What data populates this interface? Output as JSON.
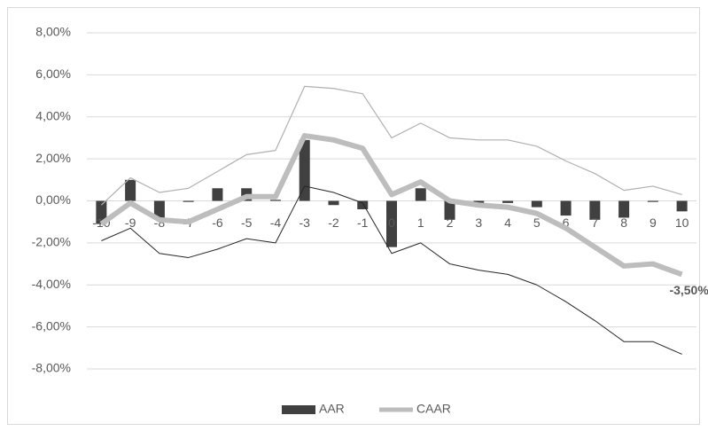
{
  "chart_data": {
    "type": "combo",
    "categories": [
      "-10",
      "-9",
      "-8",
      "-7",
      "-6",
      "-5",
      "-4",
      "-3",
      "-2",
      "-1",
      "0",
      "1",
      "2",
      "3",
      "4",
      "5",
      "6",
      "7",
      "8",
      "9",
      "10"
    ],
    "ylim": [
      -8,
      8
    ],
    "yticks": [
      {
        "value": -8,
        "label": "-8,00%"
      },
      {
        "value": -6,
        "label": "-6,00%"
      },
      {
        "value": -4,
        "label": "-4,00%"
      },
      {
        "value": -2,
        "label": "-2,00%"
      },
      {
        "value": 0,
        "label": "0,00%"
      },
      {
        "value": 2,
        "label": "2,00%"
      },
      {
        "value": 4,
        "label": "4,00%"
      },
      {
        "value": 6,
        "label": "6,00%"
      },
      {
        "value": 8,
        "label": "8,00%"
      }
    ],
    "grid": true,
    "legend": "bottom",
    "series": [
      {
        "name": "AAR",
        "type": "bar",
        "color": "#404040",
        "values": [
          -1.1,
          1.0,
          -0.8,
          -0.05,
          0.6,
          0.6,
          0.05,
          2.9,
          -0.2,
          -0.4,
          -2.2,
          0.6,
          -0.9,
          -0.1,
          -0.1,
          -0.3,
          -0.7,
          -0.9,
          -0.8,
          -0.05,
          -0.5
        ]
      },
      {
        "type": "line",
        "color": "#b0b0b0",
        "width": 1.2,
        "values": [
          -0.2,
          1.1,
          0.4,
          0.6,
          1.4,
          2.2,
          2.4,
          5.45,
          5.35,
          5.1,
          3.0,
          3.7,
          3.0,
          2.9,
          2.9,
          2.6,
          1.9,
          1.3,
          0.5,
          0.7,
          0.3
        ]
      },
      {
        "type": "line",
        "color": "#262626",
        "width": 1,
        "values": [
          -1.9,
          -1.3,
          -2.5,
          -2.7,
          -2.3,
          -1.8,
          -2.0,
          0.7,
          0.4,
          -0.1,
          -2.5,
          -2.0,
          -3.0,
          -3.3,
          -3.5,
          -4.0,
          -4.8,
          -5.7,
          -6.7,
          -6.7,
          -7.3
        ]
      },
      {
        "name": "CAAR",
        "type": "line",
        "color": "#bdbdbd",
        "width": 6,
        "values": [
          -1.1,
          -0.1,
          -0.9,
          -1.0,
          -0.4,
          0.2,
          0.2,
          3.1,
          2.9,
          2.5,
          0.3,
          0.9,
          0.0,
          -0.2,
          -0.3,
          -0.6,
          -1.3,
          -2.2,
          -3.1,
          -3.0,
          -3.5
        ],
        "value_labels": [
          null,
          null,
          null,
          null,
          null,
          null,
          null,
          null,
          null,
          null,
          null,
          null,
          null,
          null,
          null,
          null,
          null,
          null,
          null,
          null,
          "-3,50%"
        ]
      }
    ]
  }
}
